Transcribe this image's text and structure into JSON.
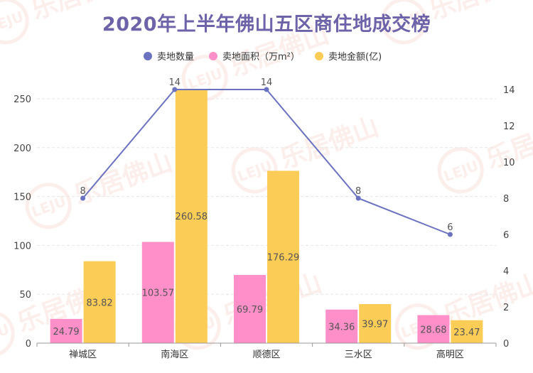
{
  "title": "2020年上半年佛山五区商住地成交榜",
  "watermark": "乐居佛山",
  "watermark_logo": "LEJU",
  "colors": {
    "line": "#6b73c1",
    "area": "#ff8fc8",
    "amount": "#fbcc56",
    "grid": "#e6e6e6",
    "axis": "#999999"
  },
  "chart_data": {
    "type": "bar",
    "title": "2020年上半年佛山五区商住地成交榜",
    "categories": [
      "禅城区",
      "南海区",
      "顺德区",
      "三水区",
      "高明区"
    ],
    "series": [
      {
        "name": "卖地数量",
        "type": "line",
        "axis": "right",
        "values": [
          8,
          14,
          14,
          8,
          6
        ],
        "labels": [
          "8",
          "14",
          "14",
          "8",
          "6"
        ]
      },
      {
        "name": "卖地面积（万m²）",
        "type": "bar",
        "axis": "left",
        "values": [
          24.79,
          103.57,
          69.79,
          34.36,
          28.68
        ],
        "labels": [
          "24.79",
          "103.57",
          "69.79",
          "34.36",
          "28.68"
        ]
      },
      {
        "name": "卖地金额(亿)",
        "type": "bar",
        "axis": "left",
        "values": [
          83.82,
          260.58,
          176.29,
          39.97,
          23.47
        ],
        "labels": [
          "83.82",
          "260.58",
          "176.29",
          "39.97",
          "23.47"
        ]
      }
    ],
    "left_axis": {
      "min": 0,
      "max": 250,
      "ticks": [
        "0",
        "50",
        "100",
        "150",
        "200",
        "250"
      ],
      "tick_values": [
        0,
        50,
        100,
        150,
        200,
        250
      ]
    },
    "right_axis": {
      "min": 0,
      "max": 14,
      "ticks": [
        "0",
        "2",
        "4",
        "6",
        "8",
        "10",
        "12",
        "14"
      ],
      "tick_values": [
        0,
        2,
        4,
        6,
        8,
        10,
        12,
        14
      ]
    },
    "grid": true,
    "legend_position": "top"
  }
}
